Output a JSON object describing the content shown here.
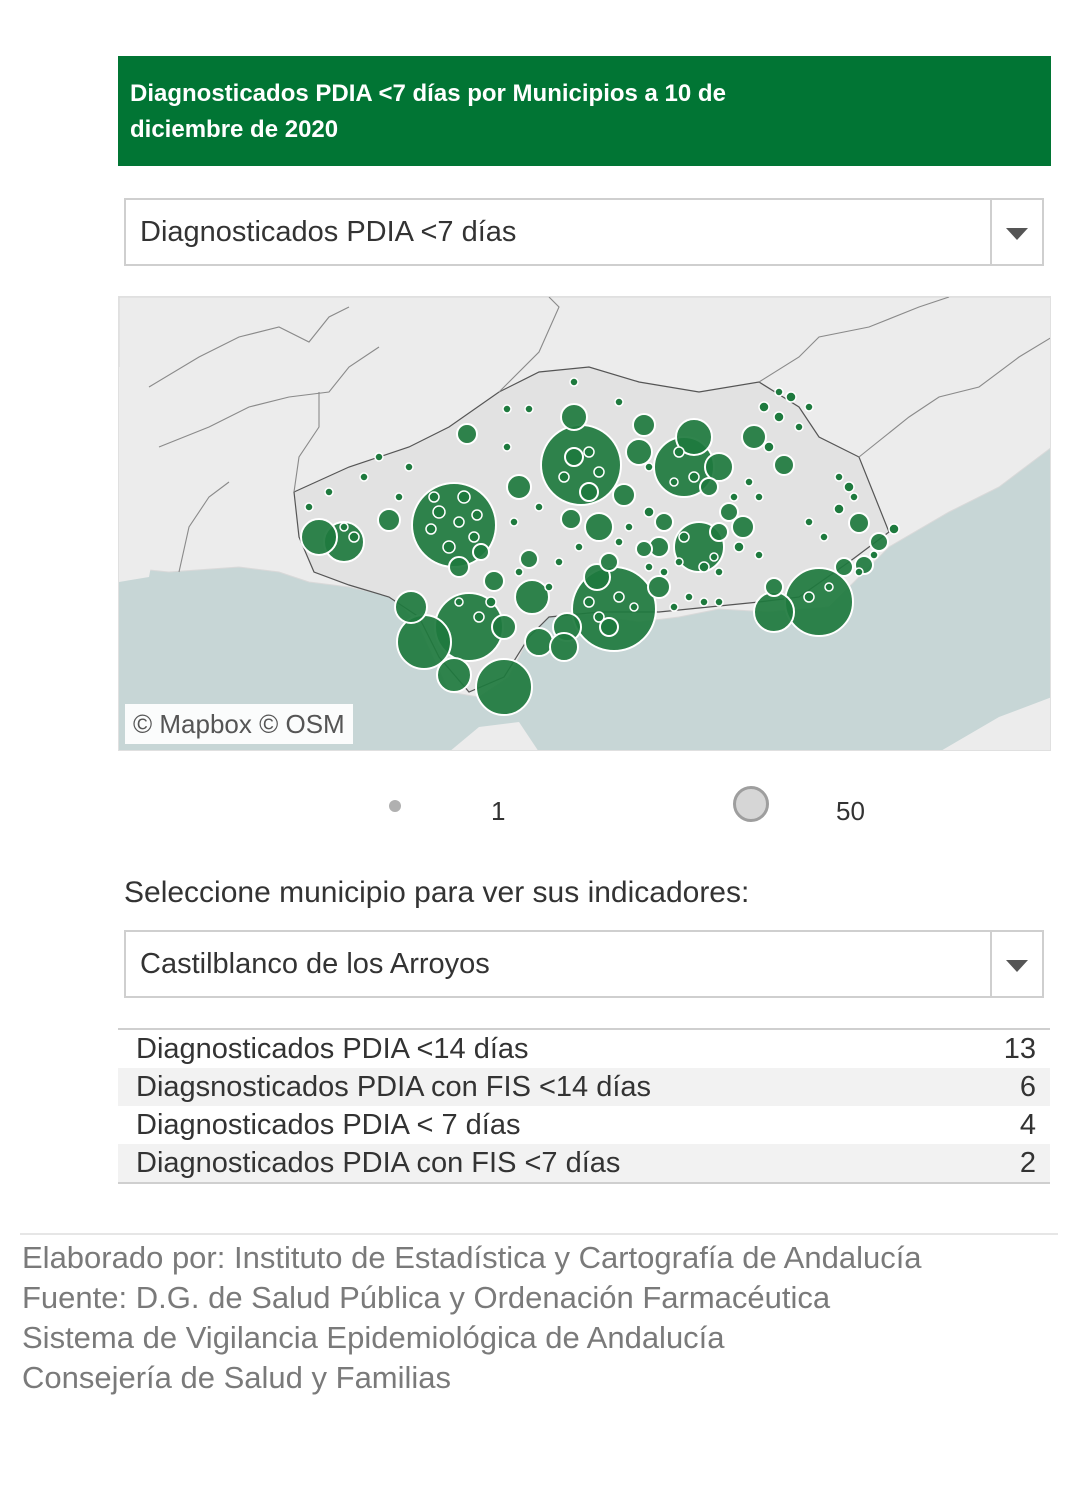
{
  "header": {
    "title": "Diagnosticados PDIA <7 días por Municipios a 10 de diciembre de 2020"
  },
  "indicator_select": {
    "value": "Diagnosticados PDIA <7 días"
  },
  "map": {
    "attribution": "© Mapbox  © OSM",
    "bubble_color": "#1e7a3e"
  },
  "legend": {
    "min_label": "1",
    "max_label": "50"
  },
  "municipio": {
    "prompt": "Seleccione municipio para ver sus indicadores:",
    "selected": "Castilblanco de los Arroyos"
  },
  "indicators": [
    {
      "label": "Diagnosticados PDIA <14 días",
      "value": "13"
    },
    {
      "label": "Diagsnosticados PDIA con FIS <14 días",
      "value": "6"
    },
    {
      "label": "Diagnosticados PDIA < 7 días",
      "value": "4"
    },
    {
      "label": "Diagnosticados PDIA con FIS <7 días",
      "value": "2"
    }
  ],
  "footer": [
    "Elaborado por: Instituto de Estadística y Cartografía de Andalucía",
    "Fuente: D.G. de Salud Pública y Ordenación Farmacéutica",
    "Sistema de Vigilancia Epidemiológica de Andalucía",
    "Consejería de Salud y Familias"
  ]
}
